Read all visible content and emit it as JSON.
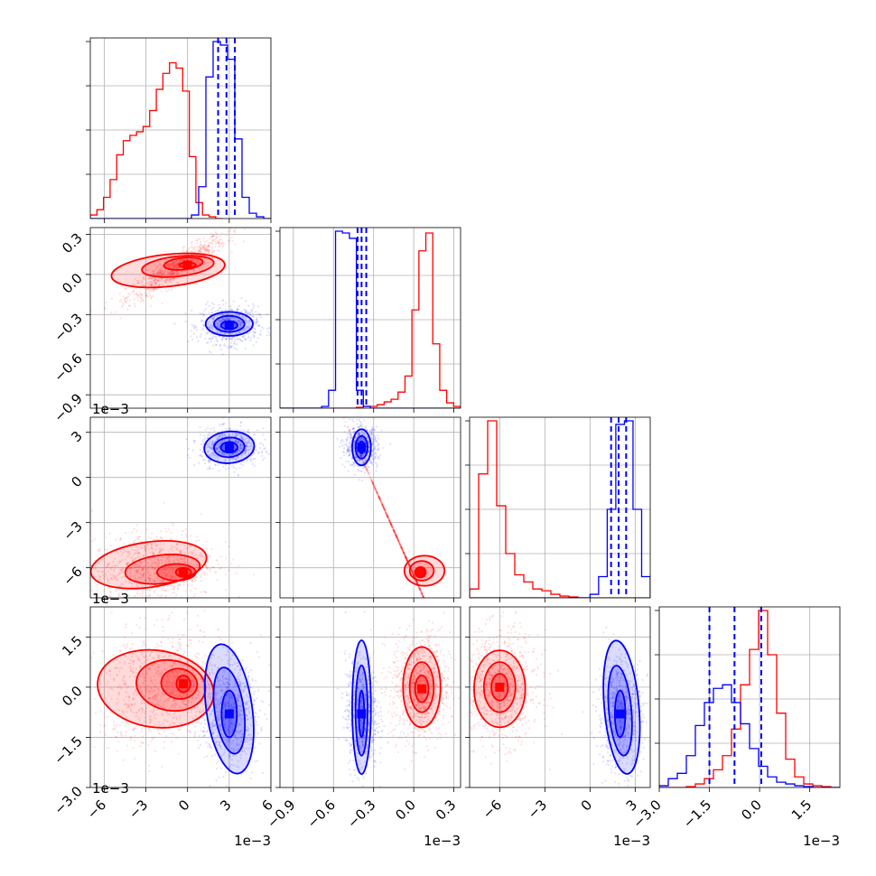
{
  "colors": {
    "series_a": "#ff0000",
    "series_b": "#0000ff",
    "grid": "#b0b0b0"
  },
  "chart_data": {
    "type": "corner",
    "parameters": [
      {
        "range": [
          -7,
          6
        ],
        "ticks": [
          -6,
          -3,
          0,
          3,
          6
        ],
        "tick_labels": [
          "−6",
          "−3",
          "0",
          "3",
          "6"
        ],
        "offset_label": "1e−3"
      },
      {
        "range": [
          -1.0,
          0.35
        ],
        "ticks": [
          -0.9,
          -0.6,
          -0.3,
          0.0,
          0.3
        ],
        "tick_labels": [
          "−0.9",
          "−0.6",
          "−0.3",
          "0.0",
          "0.3"
        ],
        "offset_label": "1e−3"
      },
      {
        "range": [
          -8.0,
          4.0
        ],
        "ticks": [
          -6,
          -3,
          0,
          3
        ],
        "tick_labels": [
          "−6",
          "−3",
          "0",
          "3"
        ],
        "offset_label": "1e−3"
      },
      {
        "range": [
          -3.0,
          2.4
        ],
        "ticks": [
          -3.0,
          -1.5,
          0.0,
          1.5
        ],
        "tick_labels": [
          "−3.0",
          "−1.5",
          "0.0",
          "1.5"
        ],
        "offset_label": "1e−3"
      }
    ],
    "series": [
      {
        "color": "#ff0000",
        "marginals": [
          {
            "edges_range": [
              -7,
              2.5
            ],
            "counts": [
              0.02,
              0.05,
              0.12,
              0.22,
              0.36,
              0.44,
              0.47,
              0.49,
              0.52,
              0.61,
              0.73,
              0.82,
              0.88,
              0.85,
              0.72,
              0.35,
              0.09,
              0.02,
              0.01,
              0
            ]
          },
          {
            "edges_range": [
              -1.0,
              0.35
            ],
            "counts": [
              0,
              0,
              0,
              0,
              0,
              0,
              0,
              0,
              0,
              0,
              0,
              0.005,
              0.01,
              0.01,
              0.02,
              0.035,
              0.05,
              0.09,
              0.18,
              0.55,
              0.88,
              0.98,
              0.36,
              0.1,
              0.03,
              0.01
            ]
          },
          {
            "edges_range": [
              -8.0,
              4.0
            ],
            "counts": [
              0.05,
              0.7,
              1.0,
              0.52,
              0.25,
              0.13,
              0.09,
              0.05,
              0.04,
              0.02,
              0.01,
              0.005,
              0,
              0,
              0,
              0,
              0,
              0,
              0,
              0
            ]
          },
          {
            "edges_range": [
              -3.0,
              2.4
            ],
            "counts": [
              0,
              0,
              0,
              0.005,
              0.02,
              0.05,
              0.1,
              0.18,
              0.33,
              0.58,
              0.78,
              1.0,
              0.75,
              0.42,
              0.16,
              0.06,
              0.02,
              0.01,
              0.005,
              0
            ]
          }
        ],
        "scatter_spread": "wide",
        "pairs": [
          {
            "x": 0,
            "y": 1,
            "mean": [
              -0.8,
              0.05
            ],
            "cov": [
              [
                2.6,
                0.16
              ],
              [
                0.16,
                0.012
              ]
            ],
            "contours": [
              {
                "cx": -1.4,
                "cy": 0.03,
                "rx": 4.1,
                "ry": 0.12,
                "rot": -6
              },
              {
                "cx": -0.7,
                "cy": 0.06,
                "rx": 2.6,
                "ry": 0.075,
                "rot": -6
              },
              {
                "cx": -0.3,
                "cy": 0.08,
                "rx": 1.4,
                "ry": 0.045,
                "rot": -6
              },
              {
                "cx": 0.0,
                "cy": 0.07,
                "rx": 0.6,
                "ry": 0.02,
                "rot": 0
              }
            ]
          },
          {
            "x": 0,
            "y": 2,
            "mean": [
              -2.5,
              -6.0
            ],
            "cov": [
              [
                4.0,
                0.4
              ],
              [
                0.4,
                1.2
              ]
            ],
            "contours": [
              {
                "cx": -2.8,
                "cy": -5.8,
                "rx": 4.2,
                "ry": 1.5,
                "rot": -8
              },
              {
                "cx": -1.8,
                "cy": -6.1,
                "rx": 2.7,
                "ry": 0.95,
                "rot": -6
              },
              {
                "cx": -0.8,
                "cy": -6.3,
                "rx": 1.4,
                "ry": 0.55,
                "rot": 0
              },
              {
                "cx": -0.3,
                "cy": -6.3,
                "rx": 0.55,
                "ry": 0.3,
                "rot": 0
              }
            ]
          },
          {
            "x": 0,
            "y": 3,
            "mean": [
              -2.0,
              0.0
            ],
            "cov": [
              [
                4.0,
                0.3
              ],
              [
                0.3,
                0.6
              ]
            ],
            "contours": [
              {
                "cx": -2.3,
                "cy": -0.05,
                "rx": 4.2,
                "ry": 1.15,
                "rot": 8
              },
              {
                "cx": -1.2,
                "cy": 0.05,
                "rx": 2.5,
                "ry": 0.75,
                "rot": 10
              },
              {
                "cx": -0.6,
                "cy": 0.1,
                "rx": 1.3,
                "ry": 0.45,
                "rot": 10
              },
              {
                "cx": -0.3,
                "cy": 0.1,
                "rx": 0.5,
                "ry": 0.25,
                "rot": 0
              }
            ]
          },
          {
            "x": 1,
            "y": 2,
            "mean": [
              -0.05,
              -5.5
            ],
            "cov": [
              [
                0.03,
                -0.6
              ],
              [
                -0.6,
                3.0
              ]
            ],
            "contours": [
              {
                "cx": 0.08,
                "cy": -6.2,
                "rx": 0.15,
                "ry": 1.0,
                "rot": 0
              },
              {
                "cx": 0.06,
                "cy": -6.2,
                "rx": 0.09,
                "ry": 0.65,
                "rot": 0
              },
              {
                "cx": 0.05,
                "cy": -6.3,
                "rx": 0.04,
                "ry": 0.35,
                "rot": 0
              }
            ]
          },
          {
            "x": 1,
            "y": 3,
            "mean": [
              0.05,
              0.0
            ],
            "cov": [
              [
                0.01,
                0
              ],
              [
                0,
                0.55
              ]
            ],
            "contours": [
              {
                "cx": 0.06,
                "cy": 0.0,
                "rx": 0.14,
                "ry": 1.2,
                "rot": 0
              },
              {
                "cx": 0.06,
                "cy": 0.0,
                "rx": 0.09,
                "ry": 0.75,
                "rot": 0
              },
              {
                "cx": 0.06,
                "cy": -0.05,
                "rx": 0.05,
                "ry": 0.4,
                "rot": 0
              }
            ]
          },
          {
            "x": 2,
            "y": 3,
            "mean": [
              -6.0,
              0.0
            ],
            "cov": [
              [
                1.4,
                0
              ],
              [
                0,
                0.55
              ]
            ],
            "contours": [
              {
                "cx": -6.0,
                "cy": -0.05,
                "rx": 1.7,
                "ry": 1.15,
                "rot": 0
              },
              {
                "cx": -6.0,
                "cy": 0.0,
                "rx": 1.05,
                "ry": 0.75,
                "rot": 0
              },
              {
                "cx": -6.0,
                "cy": 0.0,
                "rx": 0.55,
                "ry": 0.4,
                "rot": 0
              }
            ]
          }
        ]
      },
      {
        "color": "#0000ff",
        "marginals": [
          {
            "edges_range": [
              -7,
              6
            ],
            "counts": [
              0,
              0,
              0,
              0,
              0,
              0,
              0,
              0,
              0,
              0,
              0,
              0,
              0,
              0,
              0.02,
              0.18,
              0.8,
              1.0,
              0.98,
              0.9,
              0.45,
              0.12,
              0.03,
              0.01,
              0
            ]
          },
          {
            "edges_range": [
              -1.0,
              0.35
            ],
            "counts": [
              0,
              0,
              0,
              0,
              0,
              0,
              0.01,
              0.1,
              0.99,
              0.98,
              0.95,
              0.1,
              0.01,
              0,
              0,
              0,
              0,
              0,
              0,
              0,
              0,
              0,
              0,
              0,
              0,
              0
            ]
          },
          {
            "edges_range": [
              -8.0,
              4.0
            ],
            "counts": [
              0,
              0,
              0,
              0,
              0,
              0,
              0,
              0,
              0,
              0,
              0,
              0,
              0,
              0,
              0.02,
              0.12,
              0.5,
              0.98,
              1.0,
              0.5,
              0.12
            ]
          },
          {
            "edges_range": [
              -3.0,
              2.4
            ],
            "counts": [
              0.01,
              0.05,
              0.08,
              0.18,
              0.35,
              0.48,
              0.56,
              0.58,
              0.48,
              0.36,
              0.22,
              0.12,
              0.06,
              0.03,
              0.02,
              0.01,
              0.005,
              0,
              0,
              0
            ]
          }
        ],
        "quantiles": [
          [
            2.2,
            2.8,
            3.4
          ],
          [
            -0.42,
            -0.39,
            -0.355
          ],
          [
            1.4,
            1.9,
            2.4
          ],
          [
            -1.5,
            -0.75,
            0.05
          ]
        ],
        "scatter_spread": "tight",
        "pairs": [
          {
            "x": 0,
            "y": 1,
            "mean": [
              3.0,
              -0.38
            ],
            "cov": [
              [
                0.9,
                0
              ],
              [
                0,
                0.004
              ]
            ],
            "contours": [
              {
                "cx": 3.0,
                "cy": -0.37,
                "rx": 1.7,
                "ry": 0.09,
                "rot": 0
              },
              {
                "cx": 3.0,
                "cy": -0.37,
                "rx": 1.1,
                "ry": 0.06,
                "rot": 0
              },
              {
                "cx": 3.0,
                "cy": -0.38,
                "rx": 0.6,
                "ry": 0.03,
                "rot": 0
              }
            ]
          },
          {
            "x": 0,
            "y": 2,
            "mean": [
              3.0,
              2.0
            ],
            "cov": [
              [
                0.9,
                0
              ],
              [
                0,
                0.3
              ]
            ],
            "contours": [
              {
                "cx": 3.0,
                "cy": 2.0,
                "rx": 1.8,
                "ry": 1.05,
                "rot": -5
              },
              {
                "cx": 3.0,
                "cy": 2.0,
                "rx": 1.1,
                "ry": 0.65,
                "rot": -5
              },
              {
                "cx": 3.0,
                "cy": 2.0,
                "rx": 0.6,
                "ry": 0.35,
                "rot": 0
              }
            ]
          },
          {
            "x": 0,
            "y": 3,
            "mean": [
              3.0,
              -0.8
            ],
            "cov": [
              [
                0.9,
                0
              ],
              [
                0,
                0.5
              ]
            ],
            "contours": [
              {
                "cx": 3.0,
                "cy": -0.65,
                "rx": 1.65,
                "ry": 1.95,
                "rot": -8
              },
              {
                "cx": 3.0,
                "cy": -0.7,
                "rx": 1.05,
                "ry": 1.3,
                "rot": -8
              },
              {
                "cx": 3.0,
                "cy": -0.8,
                "rx": 0.55,
                "ry": 0.7,
                "rot": 0
              }
            ]
          },
          {
            "x": 1,
            "y": 2,
            "mean": [
              -0.39,
              2.0
            ],
            "cov": [
              [
                0.003,
                0
              ],
              [
                0,
                0.35
              ]
            ],
            "contours": [
              {
                "cx": -0.39,
                "cy": 2.0,
                "rx": 0.07,
                "ry": 1.2,
                "rot": 0
              },
              {
                "cx": -0.39,
                "cy": 2.0,
                "rx": 0.045,
                "ry": 0.75,
                "rot": 0
              },
              {
                "cx": -0.39,
                "cy": 2.0,
                "rx": 0.02,
                "ry": 0.4,
                "rot": 0
              }
            ]
          },
          {
            "x": 1,
            "y": 3,
            "mean": [
              -0.39,
              -0.8
            ],
            "cov": [
              [
                0.003,
                0
              ],
              [
                0,
                0.6
              ]
            ],
            "contours": [
              {
                "cx": -0.39,
                "cy": -0.6,
                "rx": 0.07,
                "ry": 2.0,
                "rot": 0
              },
              {
                "cx": -0.39,
                "cy": -0.7,
                "rx": 0.045,
                "ry": 1.35,
                "rot": 0
              },
              {
                "cx": -0.39,
                "cy": -0.8,
                "rx": 0.02,
                "ry": 0.7,
                "rot": 0
              }
            ]
          },
          {
            "x": 2,
            "y": 3,
            "mean": [
              2.0,
              -0.8
            ],
            "cov": [
              [
                0.45,
                0
              ],
              [
                0,
                0.6
              ]
            ],
            "contours": [
              {
                "cx": 2.1,
                "cy": -0.6,
                "rx": 1.15,
                "ry": 2.0,
                "rot": -5
              },
              {
                "cx": 2.0,
                "cy": -0.7,
                "rx": 0.75,
                "ry": 1.35,
                "rot": -5
              },
              {
                "cx": 2.0,
                "cy": -0.8,
                "rx": 0.35,
                "ry": 0.7,
                "rot": 0
              }
            ]
          }
        ]
      }
    ]
  }
}
